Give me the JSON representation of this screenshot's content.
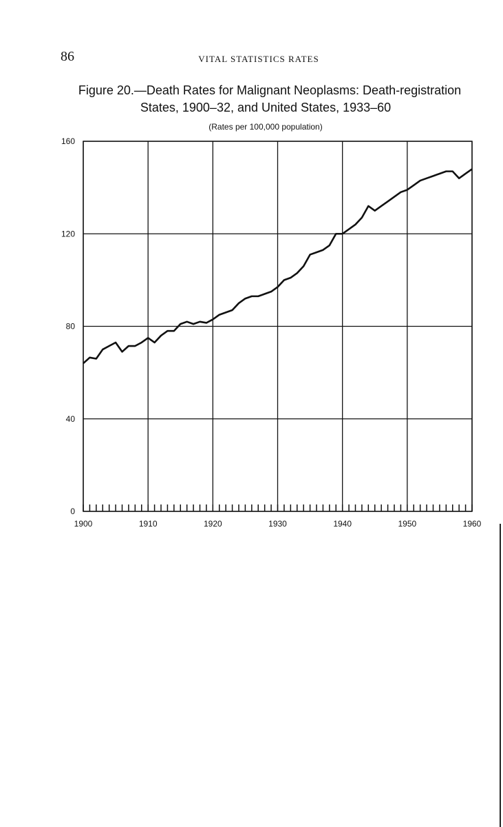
{
  "page_number": "86",
  "running_head": "VITAL STATISTICS RATES",
  "chart_data": {
    "type": "line",
    "title": [
      "Figure 20.—Death Rates for Malignant Neoplasms: Death-registration",
      "States, 1900–32, and United States, 1933–60"
    ],
    "subtitle": "(Rates per 100,000 population)",
    "x": [
      1900,
      1901,
      1902,
      1903,
      1904,
      1905,
      1906,
      1907,
      1908,
      1909,
      1910,
      1911,
      1912,
      1913,
      1914,
      1915,
      1916,
      1917,
      1918,
      1919,
      1920,
      1921,
      1922,
      1923,
      1924,
      1925,
      1926,
      1927,
      1928,
      1929,
      1930,
      1931,
      1932,
      1933,
      1934,
      1935,
      1936,
      1937,
      1938,
      1939,
      1940,
      1941,
      1942,
      1943,
      1944,
      1945,
      1946,
      1947,
      1948,
      1949,
      1950,
      1951,
      1952,
      1953,
      1954,
      1955,
      1956,
      1957,
      1958,
      1959,
      1960
    ],
    "series": [
      {
        "color": "#111111",
        "values": [
          64,
          66.5,
          66,
          70,
          71.5,
          73,
          69,
          71.5,
          71.5,
          73,
          75,
          73,
          76,
          78,
          78,
          81,
          82,
          81,
          82,
          81.5,
          83,
          85,
          86,
          87,
          90,
          92,
          93,
          93,
          94,
          95,
          97,
          100,
          101,
          103,
          106,
          111,
          112,
          113,
          115,
          120,
          120,
          122,
          124,
          127,
          132,
          130,
          132,
          134,
          136,
          138,
          139,
          141,
          143,
          144,
          145,
          146,
          147,
          147,
          144,
          146,
          148
        ]
      }
    ],
    "xlim": [
      1900,
      1960
    ],
    "xticks": [
      1900,
      1910,
      1920,
      1930,
      1940,
      1950,
      1960
    ],
    "ylim": [
      0,
      160
    ],
    "yticks": [
      0,
      40,
      80,
      120,
      160
    ],
    "grid": true
  }
}
